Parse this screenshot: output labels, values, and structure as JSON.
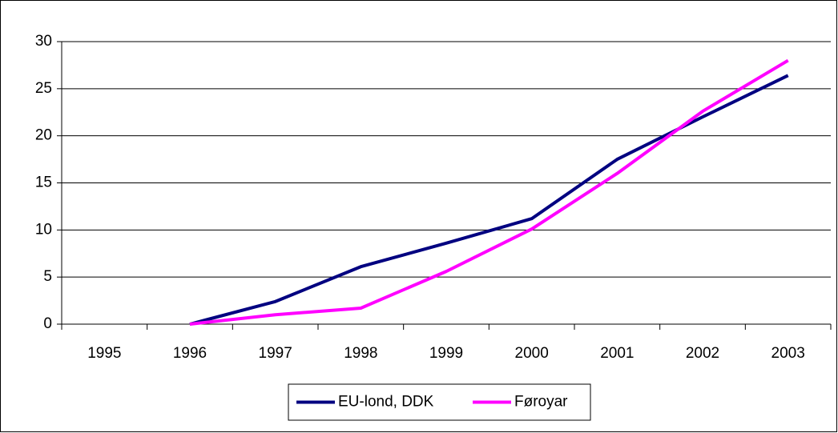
{
  "chart_data": {
    "type": "line",
    "categories": [
      "1995",
      "1996",
      "1997",
      "1998",
      "1999",
      "2000",
      "2001",
      "2002",
      "2003"
    ],
    "series": [
      {
        "name": "EU-lond, DDK",
        "color": "#000080",
        "values": [
          null,
          0,
          2.4,
          6.1,
          8.6,
          11.2,
          17.5,
          22.0,
          26.4
        ]
      },
      {
        "name": "Føroyar",
        "color": "#ff00ff",
        "values": [
          null,
          0,
          1.0,
          1.7,
          5.6,
          10.1,
          16.0,
          22.6,
          28.0
        ]
      }
    ],
    "ylim": [
      0,
      30
    ],
    "yticks": [
      0,
      5,
      10,
      15,
      20,
      25,
      30
    ],
    "grid": true,
    "legend": "bottom"
  }
}
